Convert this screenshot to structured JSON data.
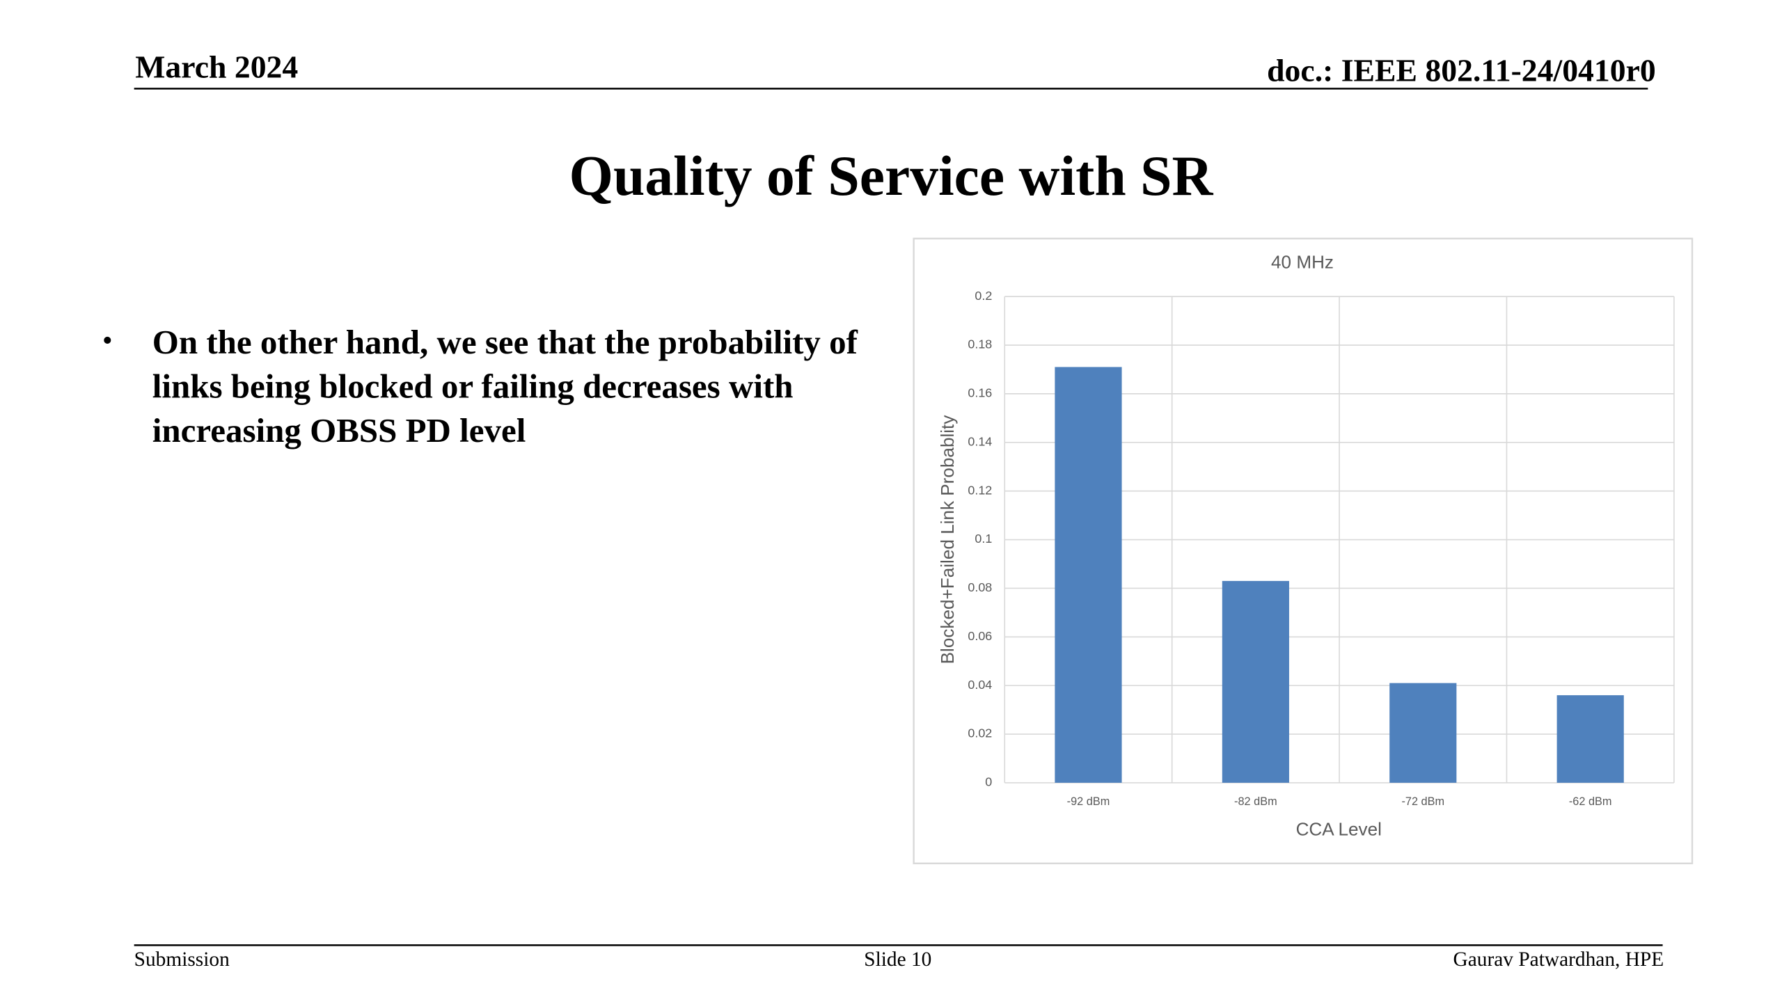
{
  "header": {
    "date": "March 2024",
    "doc": "doc.: IEEE 802.11-24/0410r0"
  },
  "title": "Quality of Service with SR",
  "bullets": [
    "On the other hand, we see that the probability of links being blocked or failing decreases with increasing OBSS PD level"
  ],
  "chart_data": {
    "type": "bar",
    "title": "40 MHz",
    "x_label": "CCA Level",
    "y_label": "Blocked+Failed Link Probablity",
    "categories": [
      "-92 dBm",
      "-82 dBm",
      "-72 dBm",
      "-62 dBm"
    ],
    "values": [
      0.171,
      0.083,
      0.041,
      0.036
    ],
    "color": "#4f81bd",
    "ylim": [
      0,
      0.2
    ],
    "yticks": [
      0,
      0.02,
      0.04,
      0.06,
      0.08,
      0.1,
      0.12,
      0.14,
      0.16,
      0.18,
      0.2
    ],
    "grid": true
  },
  "footer": {
    "left": "Submission",
    "center": "Slide 10",
    "right": "Gaurav Patwardhan, HPE"
  }
}
